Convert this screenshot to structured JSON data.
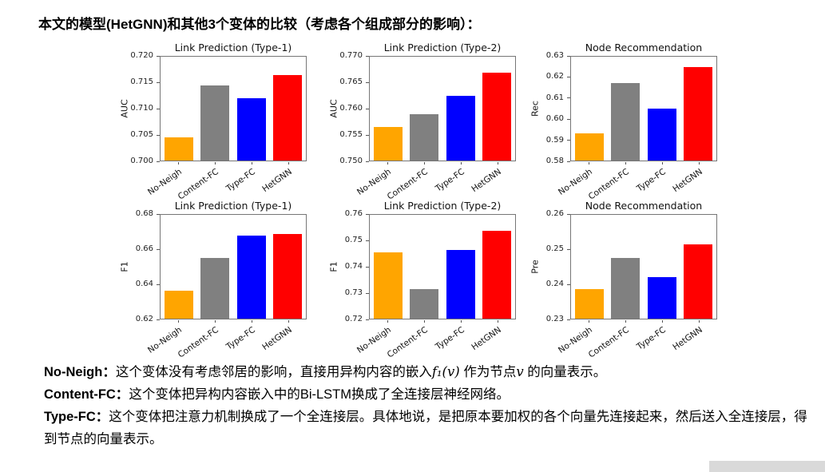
{
  "page": {
    "title": "本文的模型(HetGNN)和其他3个变体的比较（考虑各个组成部分的影响）："
  },
  "chart_colors": [
    "#FFA500",
    "#808080",
    "#0000FF",
    "#FF0000"
  ],
  "chart_data": [
    {
      "type": "bar",
      "title": "Link Prediction (Type-1)",
      "ylabel": "AUC",
      "categories": [
        "No-Neigh",
        "Content-FC",
        "Type-FC",
        "HetGNN"
      ],
      "values": [
        0.7045,
        0.7145,
        0.712,
        0.7165
      ],
      "ylim": [
        0.7,
        0.72
      ],
      "yticks": [
        0.7,
        0.705,
        0.71,
        0.715,
        0.72
      ],
      "ytick_labels": [
        "0.700",
        "0.705",
        "0.710",
        "0.715",
        "0.720"
      ],
      "legend_position": "none",
      "grid": false
    },
    {
      "type": "bar",
      "title": "Link Prediction (Type-2)",
      "ylabel": "AUC",
      "categories": [
        "No-Neigh",
        "Content-FC",
        "Type-FC",
        "HetGNN"
      ],
      "values": [
        0.7565,
        0.759,
        0.7625,
        0.767
      ],
      "ylim": [
        0.75,
        0.77
      ],
      "yticks": [
        0.75,
        0.755,
        0.76,
        0.765,
        0.77
      ],
      "ytick_labels": [
        "0.750",
        "0.755",
        "0.760",
        "0.765",
        "0.770"
      ],
      "legend_position": "none",
      "grid": false
    },
    {
      "type": "bar",
      "title": "Node Recommendation",
      "ylabel": "Rec",
      "categories": [
        "No-Neigh",
        "Content-FC",
        "Type-FC",
        "HetGNN"
      ],
      "values": [
        0.593,
        0.6175,
        0.605,
        0.625
      ],
      "ylim": [
        0.58,
        0.63
      ],
      "yticks": [
        0.58,
        0.59,
        0.6,
        0.61,
        0.62,
        0.63
      ],
      "ytick_labels": [
        "0.58",
        "0.59",
        "0.60",
        "0.61",
        "0.62",
        "0.63"
      ],
      "legend_position": "none",
      "grid": false
    },
    {
      "type": "bar",
      "title": "Link Prediction (Type-1)",
      "ylabel": "F1",
      "categories": [
        "No-Neigh",
        "Content-FC",
        "Type-FC",
        "HetGNN"
      ],
      "values": [
        0.636,
        0.655,
        0.668,
        0.669
      ],
      "ylim": [
        0.62,
        0.68
      ],
      "yticks": [
        0.62,
        0.64,
        0.66,
        0.68
      ],
      "ytick_labels": [
        "0.62",
        "0.64",
        "0.66",
        "0.68"
      ],
      "legend_position": "none",
      "grid": false
    },
    {
      "type": "bar",
      "title": "Link Prediction (Type-2)",
      "ylabel": "F1",
      "categories": [
        "No-Neigh",
        "Content-FC",
        "Type-FC",
        "HetGNN"
      ],
      "values": [
        0.7455,
        0.7315,
        0.7465,
        0.754
      ],
      "ylim": [
        0.72,
        0.76
      ],
      "yticks": [
        0.72,
        0.73,
        0.74,
        0.75,
        0.76
      ],
      "ytick_labels": [
        "0.72",
        "0.73",
        "0.74",
        "0.75",
        "0.76"
      ],
      "legend_position": "none",
      "grid": false
    },
    {
      "type": "bar",
      "title": "Node Recommendation",
      "ylabel": "Pre",
      "categories": [
        "No-Neigh",
        "Content-FC",
        "Type-FC",
        "HetGNN"
      ],
      "values": [
        0.2385,
        0.2475,
        0.242,
        0.2515
      ],
      "ylim": [
        0.23,
        0.26
      ],
      "yticks": [
        0.23,
        0.24,
        0.25,
        0.26
      ],
      "ytick_labels": [
        "0.23",
        "0.24",
        "0.25",
        "0.26"
      ],
      "legend_position": "none",
      "grid": false
    }
  ],
  "notes": [
    {
      "label": "No-Neigh：",
      "pre": "这个变体没有考虑邻居的影响，直接用异构内容的嵌入",
      "math1": "f₁(v)",
      "mid": " 作为节点",
      "math2": "v",
      "post": " 的向量表示。"
    },
    {
      "label": "Content-FC：",
      "text": "这个变体把异构内容嵌入中的Bi-LSTM换成了全连接层神经网络。"
    },
    {
      "label": "Type-FC：",
      "text": "这个变体把注意力机制换成了一个全连接层。具体地说，是把原本要加权的各个向量先连接起来，然后送入全连接层，得到节点的向量表示。"
    }
  ]
}
